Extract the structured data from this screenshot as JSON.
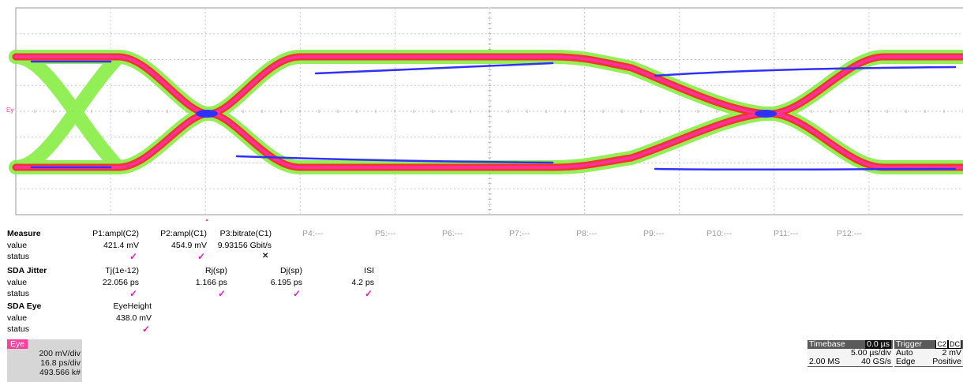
{
  "trace": {
    "marker_label": "Ey"
  },
  "measure": {
    "row_labels": [
      "Measure",
      "value",
      "status"
    ],
    "headers": [
      "P1:ampl(C2)",
      "P2:ampl(C1)",
      "P3:bitrate(C1)"
    ],
    "values": [
      "421.4 mV",
      "454.9 mV",
      "9.93156 Gbit/s"
    ],
    "status_marks": [
      "✓",
      "✓",
      "✕"
    ],
    "unused": [
      "P4:---",
      "P5:---",
      "P6:---",
      "P7:---",
      "P8:---",
      "P9:---",
      "P10:---",
      "P11:---",
      "P12:---"
    ]
  },
  "jitter": {
    "row_labels": [
      "SDA Jitter",
      "value",
      "status"
    ],
    "headers": [
      "Tj(1e-12)",
      "Rj(sp)",
      "Dj(sp)",
      "ISI"
    ],
    "values": [
      "22.056 ps",
      "1.166 ps",
      "6.195 ps",
      "4.2 ps"
    ],
    "status_marks": [
      "✓",
      "✓",
      "✓",
      "✓"
    ]
  },
  "eye": {
    "row_labels": [
      "SDA Eye",
      "value",
      "status"
    ],
    "headers": [
      "EyeHeight"
    ],
    "values": [
      "438.0 mV"
    ],
    "status_marks": [
      "✓"
    ]
  },
  "eye_badge": {
    "tag": "Eye",
    "vdiv": "200 mV/div",
    "tdiv": "16.8 ps/div",
    "count": "493.566 k#"
  },
  "timebase": {
    "title": "Timebase",
    "delay": "0.0 µs",
    "tdiv": "5.00 µs/div",
    "samples": "2.00 MS",
    "rate": "40 GS/s"
  },
  "trigger": {
    "title": "Trigger",
    "source": "C2",
    "coupling": "DC",
    "mode": "Auto",
    "level": "2 mV",
    "type": "Edge",
    "slope": "Positive"
  },
  "colors": {
    "grid": "#c8c8c8",
    "check": "#e020c0",
    "eye_tag": "#ff3ea0",
    "eye_outer": "#88ee44",
    "eye_mid": "#ff2020",
    "eye_core": "#ff30a0",
    "eye_center": "#3030ff"
  }
}
